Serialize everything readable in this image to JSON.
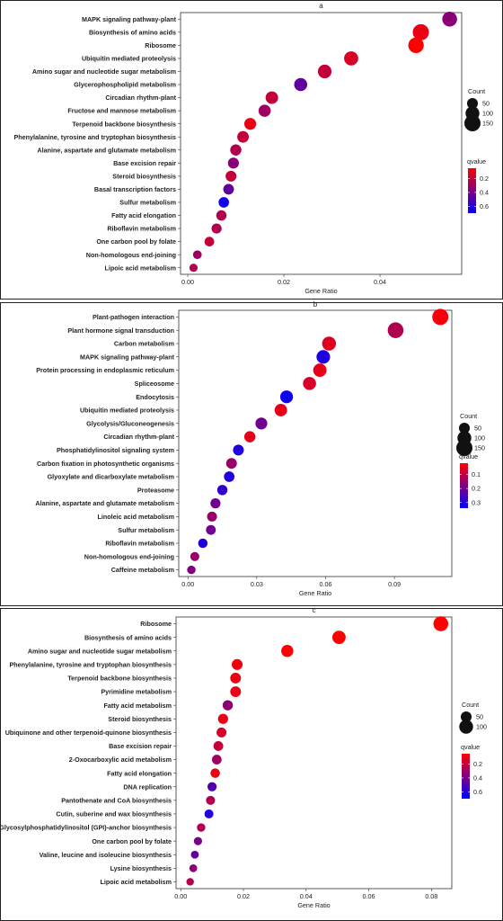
{
  "chart_data": [
    {
      "type": "scatter",
      "title": "a",
      "xlabel": "Gene Ratio",
      "ylabel": "",
      "xlim": [
        -0.0015,
        0.057
      ],
      "xticks": [
        0.0,
        0.02,
        0.04
      ],
      "tick_labels": [
        "0.00",
        "0.02",
        "0.04"
      ],
      "size_legend": {
        "title": "Count",
        "values": [
          50,
          100,
          150
        ]
      },
      "color_legend": {
        "title": "qvalue",
        "ticks": [
          0.2,
          0.4,
          0.6
        ],
        "tick_labels": [
          "0.2",
          "0.4",
          "0.6"
        ],
        "range": [
          0.05,
          0.7
        ],
        "low_color": "#ff0000",
        "high_color": "#0000ff"
      },
      "categories": [
        "MAPK signaling pathway-plant",
        "Biosynthesis of amino acids",
        "Ribosome",
        "Ubiquitin mediated proteolysis",
        "Amino sugar and nucleotide sugar metabolism",
        "Glycerophospholipid metabolism",
        "Circadian rhythm-plant",
        "Fructose and mannose metabolism",
        "Terpenoid backbone biosynthesis",
        "Phenylalanine, tyrosine and tryptophan biosynthesis",
        "Alanine, aspartate and glutamate metabolism",
        "Base excision repair",
        "Steroid biosynthesis",
        "Basal transcription factors",
        "Sulfur metabolism",
        "Fatty acid elongation",
        "Riboflavin metabolism",
        "One carbon pool by folate",
        "Non-homologous end-joining",
        "Lipoic acid metabolism"
      ],
      "x": [
        0.0545,
        0.0485,
        0.0475,
        0.034,
        0.0285,
        0.0235,
        0.0175,
        0.016,
        0.013,
        0.0115,
        0.01,
        0.0095,
        0.009,
        0.0085,
        0.0075,
        0.007,
        0.006,
        0.0045,
        0.002,
        0.0012
      ],
      "count": [
        120,
        150,
        135,
        105,
        95,
        85,
        75,
        70,
        65,
        60,
        55,
        52,
        50,
        48,
        45,
        43,
        40,
        35,
        25,
        20
      ],
      "qvalue": [
        0.35,
        0.1,
        0.05,
        0.15,
        0.2,
        0.45,
        0.2,
        0.3,
        0.1,
        0.2,
        0.25,
        0.35,
        0.2,
        0.45,
        0.65,
        0.25,
        0.25,
        0.2,
        0.3,
        0.25
      ]
    },
    {
      "type": "scatter",
      "title": "b",
      "xlabel": "Gene Ratio",
      "ylabel": "",
      "xlim": [
        -0.004,
        0.115
      ],
      "xticks": [
        0.0,
        0.03,
        0.06,
        0.09
      ],
      "tick_labels": [
        "0.00",
        "0.03",
        "0.06",
        "0.09"
      ],
      "size_legend": {
        "title": "Count",
        "values": [
          50,
          100,
          150
        ]
      },
      "color_legend": {
        "title": "qvalue",
        "ticks": [
          0.1,
          0.2,
          0.3
        ],
        "tick_labels": [
          "0.1",
          "0.2",
          "0.3"
        ],
        "range": [
          0.02,
          0.34
        ],
        "low_color": "#ff0000",
        "high_color": "#0000ff"
      },
      "categories": [
        "Plant-pathogen interaction",
        "Plant hormone signal transduction",
        "Carbon metabolism",
        "MAPK signaling pathway-plant",
        "Protein processing in endoplasmic reticulum",
        "Spliceosome",
        "Endocytosis",
        "Ubiquitin mediated proteolysis",
        "Glycolysis/Gluconeogenesis",
        "Circadian rhythm-plant",
        "Phosphatidylinositol signaling system",
        "Carbon fixation in photosynthetic organisms",
        "Glyoxylate and dicarboxylate metabolism",
        "Proteasome",
        "Alanine, aspartate and glutamate metabolism",
        "Linoleic acid metabolism",
        "Sulfur metabolism",
        "Riboflavin metabolism",
        "Non-homologous end-joining",
        "Caffeine metabolism"
      ],
      "x": [
        0.11,
        0.0905,
        0.0615,
        0.059,
        0.0575,
        0.053,
        0.043,
        0.0405,
        0.032,
        0.027,
        0.022,
        0.019,
        0.018,
        0.015,
        0.012,
        0.0105,
        0.01,
        0.0065,
        0.003,
        0.0015
      ],
      "count": [
        150,
        140,
        100,
        95,
        90,
        85,
        80,
        75,
        65,
        55,
        50,
        48,
        45,
        42,
        40,
        38,
        36,
        32,
        28,
        22
      ],
      "qvalue": [
        0.03,
        0.12,
        0.06,
        0.3,
        0.05,
        0.07,
        0.32,
        0.05,
        0.2,
        0.05,
        0.3,
        0.15,
        0.3,
        0.28,
        0.2,
        0.15,
        0.2,
        0.3,
        0.15,
        0.18
      ]
    },
    {
      "type": "scatter",
      "title": "c",
      "xlabel": "Gene Ratio",
      "ylabel": "",
      "xlim": [
        -0.0015,
        0.0865
      ],
      "xticks": [
        0.0,
        0.02,
        0.04,
        0.06,
        0.08
      ],
      "tick_labels": [
        "0.00",
        "0.02",
        "0.04",
        "0.06",
        "0.08"
      ],
      "size_legend": {
        "title": "Count",
        "values": [
          50,
          100
        ]
      },
      "color_legend": {
        "title": "qvalue",
        "ticks": [
          0.2,
          0.4,
          0.6
        ],
        "tick_labels": [
          "0.2",
          "0.4",
          "0.6"
        ],
        "range": [
          0.05,
          0.7
        ],
        "low_color": "#ff0000",
        "high_color": "#0000ff"
      },
      "categories": [
        "Ribosome",
        "Biosynthesis of amino acids",
        "Amino sugar and nucleotide sugar metabolism",
        "Phenylalanine, tyrosine and tryptophan biosynthesis",
        "Terpenoid backbone biosynthesis",
        "Pyrimidine metabolism",
        "Fatty acid metabolism",
        "Steroid biosynthesis",
        "Ubiquinone and other terpenoid-quinone biosynthesis",
        "Base excision repair",
        "2-Oxocarboxylic acid metabolism",
        "Fatty acid elongation",
        "DNA replication",
        "Pantothenate and CoA biosynthesis",
        "Cutin, suberine and wax biosynthesis",
        "Glycosylphosphatidylinositol (GPI)-anchor biosynthesis",
        "One carbon pool by folate",
        "Valine, leucine and isoleucine biosynthesis",
        "Lysine biosynthesis",
        "Lipoic acid metabolism"
      ],
      "x": [
        0.083,
        0.0505,
        0.034,
        0.018,
        0.0175,
        0.0175,
        0.015,
        0.0135,
        0.013,
        0.012,
        0.0115,
        0.011,
        0.01,
        0.0095,
        0.009,
        0.0065,
        0.0055,
        0.0045,
        0.004,
        0.003
      ],
      "count": [
        120,
        90,
        70,
        50,
        48,
        48,
        42,
        40,
        38,
        36,
        35,
        33,
        30,
        28,
        27,
        22,
        20,
        18,
        17,
        15
      ],
      "qvalue": [
        0.05,
        0.05,
        0.05,
        0.08,
        0.1,
        0.1,
        0.35,
        0.1,
        0.15,
        0.2,
        0.3,
        0.1,
        0.5,
        0.25,
        0.62,
        0.25,
        0.4,
        0.45,
        0.35,
        0.25
      ]
    }
  ]
}
